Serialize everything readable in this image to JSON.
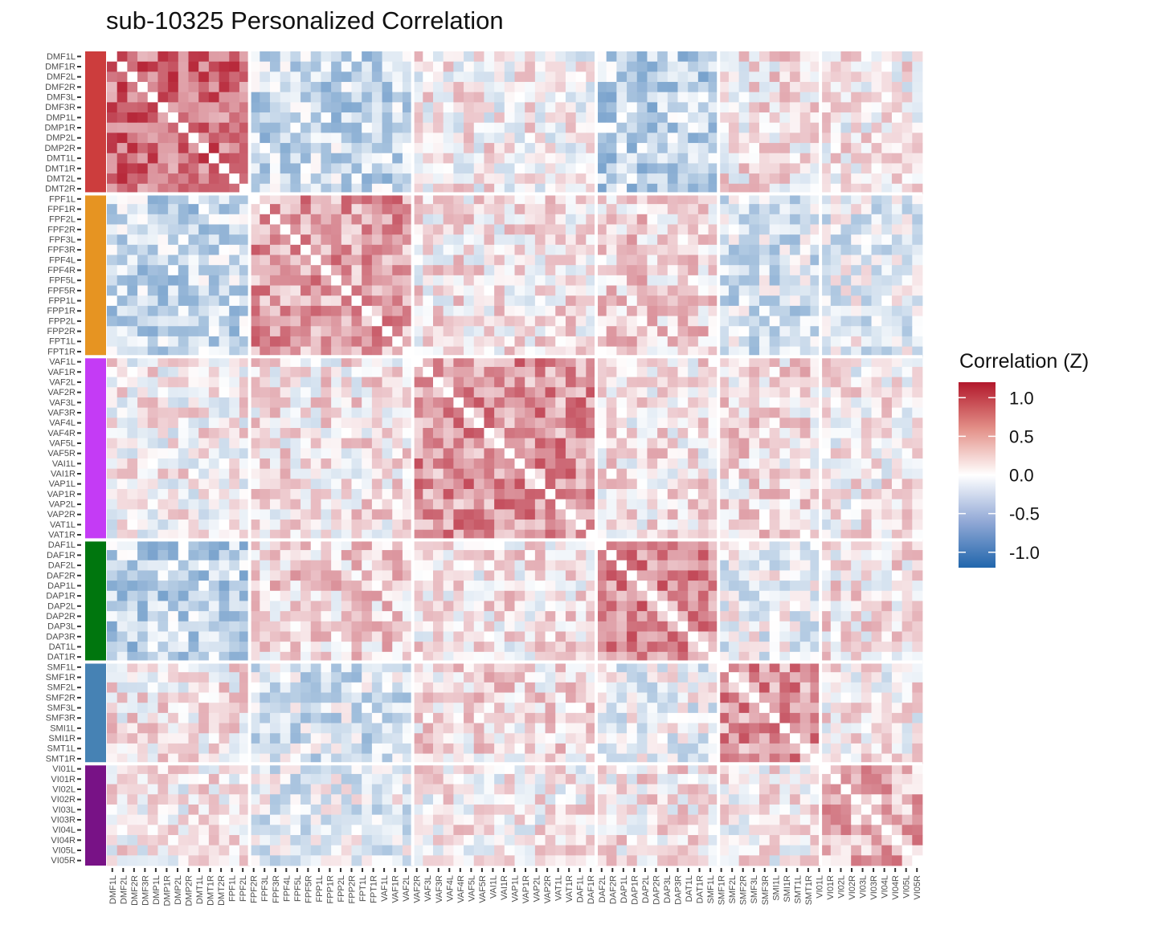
{
  "chart_data": {
    "type": "heatmap",
    "title": "sub-10325 Personalized Correlation",
    "labels": [
      "DMF1L",
      "DMF1R",
      "DMF2L",
      "DMF2R",
      "DMF3L",
      "DMF3R",
      "DMP1L",
      "DMP1R",
      "DMP2L",
      "DMP2R",
      "DMT1L",
      "DMT1R",
      "DMT2L",
      "DMT2R",
      "FPF1L",
      "FPF1R",
      "FPF2L",
      "FPF2R",
      "FPF3L",
      "FPF3R",
      "FPF4L",
      "FPF4R",
      "FPF5L",
      "FPF5R",
      "FPP1L",
      "FPP1R",
      "FPP2L",
      "FPP2R",
      "FPT1L",
      "FPT1R",
      "VAF1L",
      "VAF1R",
      "VAF2L",
      "VAF2R",
      "VAF3L",
      "VAF3R",
      "VAF4L",
      "VAF4R",
      "VAF5L",
      "VAF5R",
      "VAI1L",
      "VAI1R",
      "VAP1L",
      "VAP1R",
      "VAP2L",
      "VAP2R",
      "VAT1L",
      "VAT1R",
      "DAF1L",
      "DAF1R",
      "DAF2L",
      "DAF2R",
      "DAP1L",
      "DAP1R",
      "DAP2L",
      "DAP2R",
      "DAP3L",
      "DAP3R",
      "DAT1L",
      "DAT1R",
      "SMF1L",
      "SMF1R",
      "SMF2L",
      "SMF2R",
      "SMF3L",
      "SMF3R",
      "SMI1L",
      "SMI1R",
      "SMT1L",
      "SMT1R",
      "VI01L",
      "VI01R",
      "VI02L",
      "VI02R",
      "VI03L",
      "VI03R",
      "VI04L",
      "VI04R",
      "VI05L",
      "VI05R"
    ],
    "x_tick_labels": [
      "DMF1L",
      "DMF2L",
      "DMF2R",
      "DMF3R",
      "DMP1L",
      "DMP1R",
      "DMP2L",
      "DMP2R",
      "DMT1L",
      "DMT1R",
      "DMT2R",
      "FPF1L",
      "FPF2L",
      "FPF2R",
      "FPF3L",
      "FPF3R",
      "FPF4L",
      "FPF5L",
      "FPF5R",
      "FPP1L",
      "FPP1R",
      "FPP2L",
      "FPP2R",
      "FPT1L",
      "FPT1R",
      "VAF1L",
      "VAF1R",
      "VAF2L",
      "VAF2R",
      "VAF3L",
      "VAF3R",
      "VAF4L",
      "VAF4R",
      "VAF5L",
      "VAF5R",
      "VAI1L",
      "VAI1R",
      "VAP1L",
      "VAP1R",
      "VAP2L",
      "VAP2R",
      "VAT1L",
      "VAT1R",
      "DAF1L",
      "DAF1R",
      "DAF2L",
      "DAF2R",
      "DAP1L",
      "DAP1R",
      "DAP2L",
      "DAP2R",
      "DAP3L",
      "DAP3R",
      "DAT1L",
      "DAT1R",
      "SMF1L",
      "SMF1R",
      "SMF2L",
      "SMF2R",
      "SMF3L",
      "SMF3R",
      "SMI1L",
      "SMI1R",
      "SMT1L",
      "SMT1R",
      "VI01L",
      "VI01R",
      "VI02L",
      "VI02R",
      "VI03L",
      "VI03R",
      "VI04L",
      "VI04R",
      "VI05L",
      "VI05R"
    ],
    "networks": [
      {
        "prefix": "DM",
        "count": 14,
        "color": "#cc3d3d"
      },
      {
        "prefix": "FP",
        "count": 16,
        "color": "#e69422"
      },
      {
        "prefix": "VA",
        "count": 18,
        "color": "#c43bf5"
      },
      {
        "prefix": "DA",
        "count": 12,
        "color": "#00760e"
      },
      {
        "prefix": "SM",
        "count": 10,
        "color": "#4682b4"
      },
      {
        "prefix": "VI",
        "count": 10,
        "color": "#781286"
      }
    ],
    "within_network_mean": [
      0.75,
      0.5,
      0.55,
      0.6,
      0.55,
      0.4
    ],
    "between_network_mean": [
      [
        0.75,
        -0.3,
        0.05,
        -0.35,
        0.1,
        0.05
      ],
      [
        -0.3,
        0.5,
        0.1,
        0.2,
        -0.2,
        -0.1
      ],
      [
        0.05,
        0.1,
        0.55,
        0.1,
        0.15,
        0.05
      ],
      [
        -0.35,
        0.2,
        0.1,
        0.6,
        -0.05,
        0.1
      ],
      [
        0.1,
        -0.2,
        0.15,
        -0.05,
        0.55,
        0.05
      ],
      [
        0.05,
        -0.1,
        0.05,
        0.1,
        0.05,
        0.4
      ]
    ],
    "diagonal": "not shown",
    "color_scale": {
      "low": "#2166ac",
      "mid": "#ffffff",
      "high": "#b2182b",
      "limits": [
        -1.2,
        1.2
      ]
    },
    "legend": {
      "title": "Correlation (Z)",
      "ticks": [
        1.0,
        0.5,
        0.0,
        -0.5,
        -1.0
      ],
      "tick_labels": [
        "1.0",
        "0.5",
        "0.0",
        "-0.5",
        "-1.0"
      ],
      "position": "right"
    }
  }
}
